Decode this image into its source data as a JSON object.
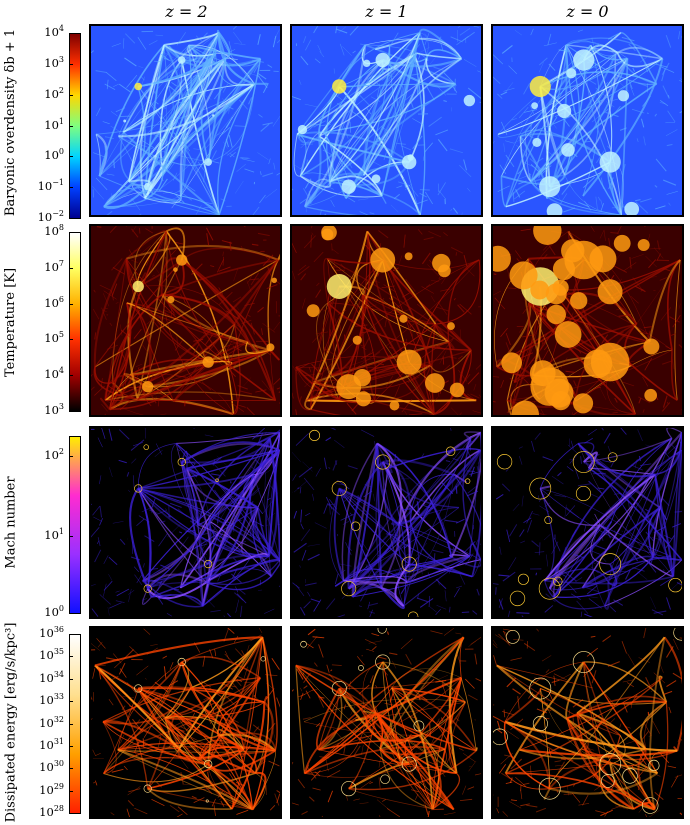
{
  "columns": [
    "z = 2",
    "z = 1",
    "z = 0"
  ],
  "rows": [
    {
      "label": "Baryonic overdensity δb + 1",
      "ticks": [
        {
          "base": "10",
          "exp": "4"
        },
        {
          "base": "10",
          "exp": "3"
        },
        {
          "base": "10",
          "exp": "2"
        },
        {
          "base": "10",
          "exp": "1"
        },
        {
          "base": "10",
          "exp": "0"
        },
        {
          "base": "10",
          "exp": "−1"
        },
        {
          "base": "10",
          "exp": "−2"
        }
      ],
      "colormap": "jet",
      "colors": [
        "#7f0000",
        "#ff3000",
        "#ffd700",
        "#7fff7f",
        "#00d4ff",
        "#0040ff",
        "#00008f"
      ]
    },
    {
      "label": "Temperature [K]",
      "ticks": [
        {
          "base": "10",
          "exp": "8"
        },
        {
          "base": "10",
          "exp": "7"
        },
        {
          "base": "10",
          "exp": "6"
        },
        {
          "base": "10",
          "exp": "5"
        },
        {
          "base": "10",
          "exp": "4"
        },
        {
          "base": "10",
          "exp": "3"
        }
      ],
      "colormap": "hot",
      "colors": [
        "#ffffff",
        "#ffff60",
        "#ffb000",
        "#ff3000",
        "#a00000",
        "#000000"
      ]
    },
    {
      "label": "Mach number",
      "ticks": [
        {
          "base": "10",
          "exp": "2"
        },
        {
          "base": "10",
          "exp": "1"
        },
        {
          "base": "10",
          "exp": "0"
        }
      ],
      "colormap": "gnuplot2-like",
      "colors": [
        "#ffee00",
        "#ff2bd0",
        "#9a30ff",
        "#1010ff"
      ]
    },
    {
      "label": "Dissipated energy [erg/s/kpc³]",
      "ticks": [
        {
          "base": "10",
          "exp": "36"
        },
        {
          "base": "10",
          "exp": "35"
        },
        {
          "base": "10",
          "exp": "34"
        },
        {
          "base": "10",
          "exp": "33"
        },
        {
          "base": "10",
          "exp": "32"
        },
        {
          "base": "10",
          "exp": "31"
        },
        {
          "base": "10",
          "exp": "30"
        },
        {
          "base": "10",
          "exp": "29"
        },
        {
          "base": "10",
          "exp": "28"
        }
      ],
      "colormap": "autumn-to-white",
      "colors": [
        "#ffffff",
        "#ffe090",
        "#ffa000",
        "#ff2000"
      ]
    }
  ],
  "panel_themes": [
    [
      "density",
      "density",
      "density"
    ],
    [
      "temperature",
      "temperature",
      "temperature"
    ],
    [
      "mach",
      "mach",
      "mach"
    ],
    [
      "energy",
      "energy",
      "energy"
    ]
  ],
  "palette": {
    "density": {
      "bg": "#2a55ff",
      "mid": "#5fb0ff",
      "hi": "#bff3ff",
      "peak": "#ffef40"
    },
    "temperature": {
      "bg": "#3a0000",
      "mid": "#a00e00",
      "hi": "#ff9a10",
      "peak": "#fff070"
    },
    "mach": {
      "bg": "#000000",
      "mid": "#3b20d8",
      "hi": "#8a4dff",
      "peak": "#ffcc33"
    },
    "energy": {
      "bg": "#000000",
      "mid": "#ff4400",
      "hi": "#ff9a1a",
      "peak": "#ffe08a"
    }
  }
}
